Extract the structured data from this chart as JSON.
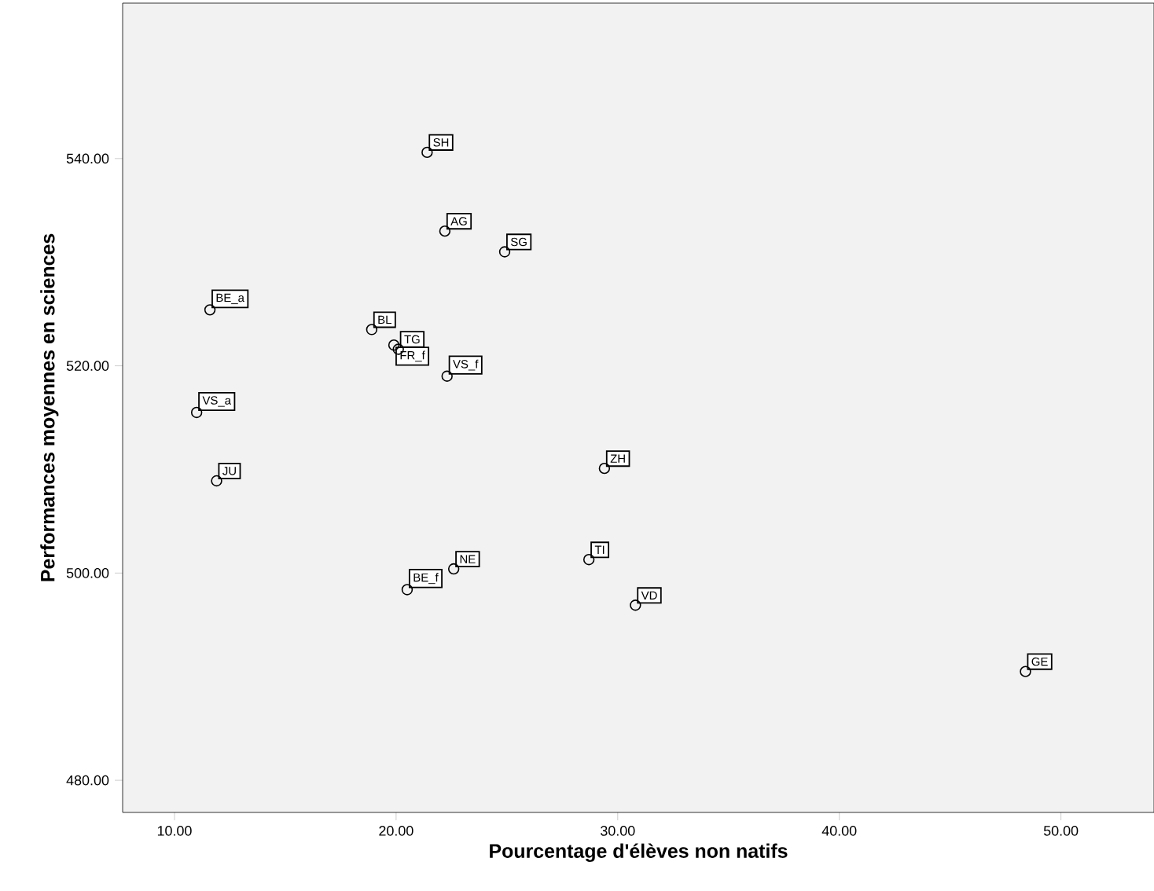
{
  "chart_data": {
    "type": "scatter",
    "xlabel": "Pourcentage d'élèves non natifs",
    "ylabel": "Performances moyennes en sciences",
    "x": [
      21.4,
      22.2,
      24.9,
      11.6,
      18.9,
      19.9,
      20.1,
      22.3,
      11.0,
      11.9,
      29.4,
      20.5,
      22.6,
      28.7,
      30.8,
      48.4
    ],
    "values": [
      540.6,
      533.0,
      531.0,
      525.4,
      523.5,
      522.0,
      521.6,
      519.0,
      515.5,
      508.9,
      510.1,
      498.4,
      500.4,
      501.3,
      496.9,
      490.5
    ],
    "color": "#000000",
    "marker": "circle",
    "xlim": [
      7.66,
      54.2
    ],
    "ylim": [
      476.9,
      555
    ],
    "xticks": [
      {
        "value": 10,
        "label": "10.00"
      },
      {
        "value": 20,
        "label": "20.00"
      },
      {
        "value": 30,
        "label": "30.00"
      },
      {
        "value": 40,
        "label": "40.00"
      },
      {
        "value": 50,
        "label": "50.00"
      }
    ],
    "yticks": [
      {
        "value": 480,
        "label": "480.00"
      },
      {
        "value": 500,
        "label": "500.00"
      },
      {
        "value": 520,
        "label": "520.00"
      },
      {
        "value": 540,
        "label": "540.00"
      }
    ],
    "annotations": [
      {
        "text": "SH",
        "x": 21.4,
        "y": 540.6
      },
      {
        "text": "AG",
        "x": 22.2,
        "y": 533.0
      },
      {
        "text": "SG",
        "x": 24.9,
        "y": 531.0
      },
      {
        "text": "BE_a",
        "x": 11.6,
        "y": 525.4
      },
      {
        "text": "BL",
        "x": 18.9,
        "y": 523.5
      },
      {
        "text": "FR_f",
        "x": 19.9,
        "y": 522.0
      },
      {
        "text": "TG",
        "x": 20.1,
        "y": 521.6
      },
      {
        "text": "VS_f",
        "x": 22.3,
        "y": 519.0
      },
      {
        "text": "VS_a",
        "x": 11.0,
        "y": 515.5
      },
      {
        "text": "JU",
        "x": 11.9,
        "y": 508.9
      },
      {
        "text": "ZH",
        "x": 29.4,
        "y": 510.1
      },
      {
        "text": "BE_f",
        "x": 20.5,
        "y": 498.4
      },
      {
        "text": "NE",
        "x": 22.6,
        "y": 500.4
      },
      {
        "text": "TI",
        "x": 28.7,
        "y": 501.3
      },
      {
        "text": "VD",
        "x": 30.8,
        "y": 496.9
      },
      {
        "text": "GE",
        "x": 48.4,
        "y": 490.5
      }
    ]
  }
}
